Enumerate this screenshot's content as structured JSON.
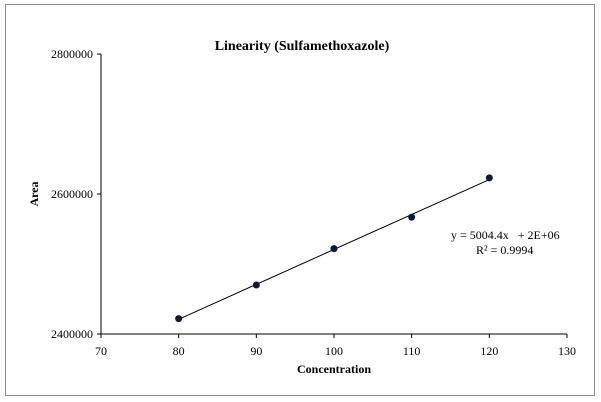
{
  "chart_data": {
    "type": "scatter",
    "title": "Linearity  (Sulfamethoxazole)",
    "xlabel": "Concentration",
    "ylabel": "Area",
    "xlim": [
      70,
      130
    ],
    "ylim": [
      2400000,
      2800000
    ],
    "x_ticks": [
      "70",
      "80",
      "90",
      "100",
      "110",
      "120",
      "130"
    ],
    "y_ticks": [
      "2400000",
      "2600000",
      "2800000"
    ],
    "x": [
      80,
      90,
      100,
      110,
      120
    ],
    "y": [
      2422000,
      2470000,
      2522000,
      2567000,
      2623000
    ],
    "trendline": {
      "type": "linear",
      "slope": 5004.4,
      "equation": "y = 5004.4x   + 2E+06",
      "r_squared": "R² = 0.9994"
    },
    "marker_color": "#0b1a3a",
    "line_color": "#000000",
    "grid": false,
    "legend": "none"
  }
}
